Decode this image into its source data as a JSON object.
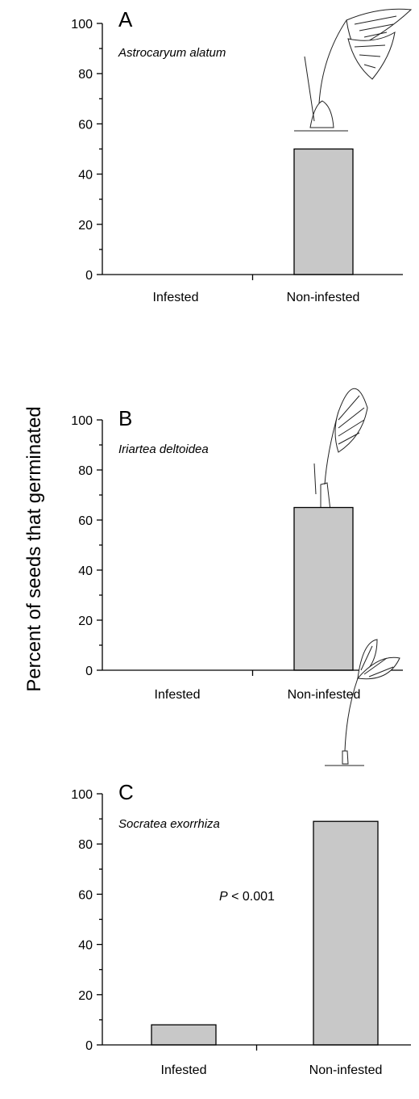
{
  "chart_data": [
    {
      "panel": "A",
      "species": "Astrocaryum alatum",
      "type": "bar",
      "categories": [
        "Infested",
        "Non-infested"
      ],
      "values": [
        0,
        50
      ],
      "ylim": [
        0,
        100
      ],
      "yticks": [
        "0",
        "20",
        "40",
        "60",
        "80",
        "100"
      ],
      "bar_color": "#c8c8c8",
      "grid": false,
      "annotation": null
    },
    {
      "panel": "B",
      "species": "Iriartea deltoidea",
      "type": "bar",
      "categories": [
        "Infested",
        "Non-infested"
      ],
      "values": [
        0,
        65
      ],
      "ylim": [
        0,
        100
      ],
      "yticks": [
        "0",
        "20",
        "40",
        "60",
        "80",
        "100"
      ],
      "bar_color": "#c8c8c8",
      "grid": false,
      "annotation": null
    },
    {
      "panel": "C",
      "species": "Socratea exorrhiza",
      "type": "bar",
      "categories": [
        "Infested",
        "Non-infested"
      ],
      "values": [
        8,
        89
      ],
      "ylim": [
        0,
        100
      ],
      "yticks": [
        "0",
        "20",
        "40",
        "60",
        "80",
        "100"
      ],
      "bar_color": "#c8c8c8",
      "grid": false,
      "annotation": {
        "italic": "P",
        "text": " < 0.001"
      }
    }
  ],
  "ylabel": "Percent of seeds that germinated"
}
